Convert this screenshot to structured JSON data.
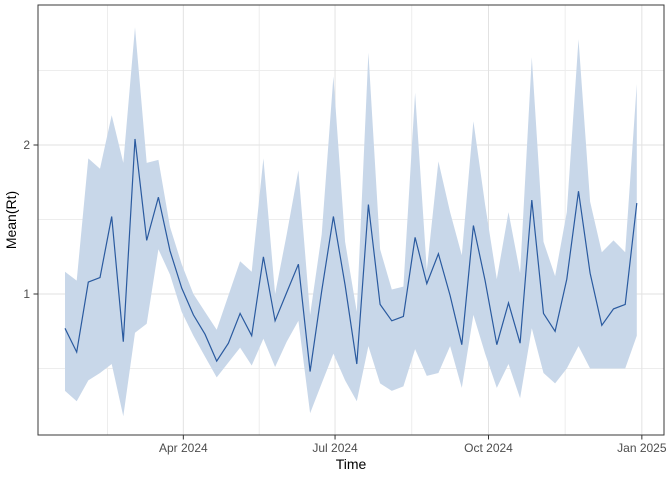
{
  "window": {
    "background": "#ffffff"
  },
  "chart_data": {
    "type": "line",
    "title": "",
    "xlabel": "Time",
    "ylabel": "Mean(Rt)",
    "x": [
      "2024-01-21",
      "2024-01-28",
      "2024-02-04",
      "2024-02-11",
      "2024-02-18",
      "2024-02-25",
      "2024-03-03",
      "2024-03-10",
      "2024-03-17",
      "2024-03-24",
      "2024-03-31",
      "2024-04-07",
      "2024-04-14",
      "2024-04-21",
      "2024-04-28",
      "2024-05-05",
      "2024-05-12",
      "2024-05-19",
      "2024-05-26",
      "2024-06-02",
      "2024-06-09",
      "2024-06-16",
      "2024-06-23",
      "2024-06-30",
      "2024-07-07",
      "2024-07-14",
      "2024-07-21",
      "2024-07-28",
      "2024-08-04",
      "2024-08-11",
      "2024-08-18",
      "2024-08-25",
      "2024-09-01",
      "2024-09-08",
      "2024-09-15",
      "2024-09-22",
      "2024-09-29",
      "2024-10-06",
      "2024-10-13",
      "2024-10-20",
      "2024-10-27",
      "2024-11-03",
      "2024-11-10",
      "2024-11-17",
      "2024-11-24",
      "2024-12-01",
      "2024-12-08",
      "2024-12-15",
      "2024-12-22",
      "2024-12-29"
    ],
    "series": [
      {
        "name": "mean_rt",
        "kind": "line",
        "color": "#2a5a9f",
        "values": [
          0.77,
          0.61,
          1.08,
          1.11,
          1.52,
          0.68,
          2.04,
          1.36,
          1.65,
          1.29,
          1.04,
          0.86,
          0.73,
          0.55,
          0.67,
          0.87,
          0.72,
          1.25,
          0.82,
          1.01,
          1.2,
          0.48,
          1.02,
          1.52,
          1.06,
          0.53,
          1.6,
          0.93,
          0.82,
          0.85,
          1.38,
          1.07,
          1.27,
          0.99,
          0.66,
          1.46,
          1.09,
          0.66,
          0.94,
          0.67,
          1.63,
          0.87,
          0.75,
          1.1,
          1.69,
          1.14,
          0.79,
          0.9,
          0.93,
          1.61
        ]
      },
      {
        "name": "credible_interval",
        "kind": "ribbon",
        "color": "#c8d7e9",
        "lower": [
          0.35,
          0.28,
          0.42,
          0.47,
          0.53,
          0.18,
          0.74,
          0.8,
          1.3,
          1.13,
          0.88,
          0.72,
          0.58,
          0.44,
          0.54,
          0.64,
          0.52,
          0.7,
          0.51,
          0.68,
          0.82,
          0.2,
          0.4,
          0.6,
          0.42,
          0.28,
          0.65,
          0.4,
          0.35,
          0.38,
          0.63,
          0.45,
          0.47,
          0.65,
          0.37,
          0.86,
          0.6,
          0.37,
          0.53,
          0.3,
          0.77,
          0.47,
          0.4,
          0.5,
          0.65,
          0.5,
          0.5,
          0.5,
          0.5,
          0.72
        ],
        "upper": [
          1.15,
          1.09,
          1.91,
          1.84,
          2.2,
          1.88,
          2.79,
          1.88,
          1.9,
          1.45,
          1.2,
          1.0,
          0.88,
          0.76,
          0.99,
          1.22,
          1.15,
          1.91,
          1.0,
          1.4,
          1.83,
          0.86,
          1.4,
          2.46,
          1.35,
          0.88,
          2.62,
          1.3,
          1.03,
          1.05,
          2.35,
          1.16,
          1.89,
          1.55,
          1.26,
          2.16,
          1.6,
          1.1,
          1.55,
          1.14,
          2.59,
          1.35,
          1.12,
          1.55,
          2.71,
          1.62,
          1.28,
          1.36,
          1.28,
          2.41
        ]
      }
    ],
    "x_tick_labels": [
      "Apr 2024",
      "Jul 2024",
      "Oct 2024",
      "Jan 2025"
    ],
    "x_tick_positions_weeks": [
      10.14,
      23.14,
      36.29,
      49.43
    ],
    "x_minor_positions_weeks": [
      3.64,
      16.64,
      29.71,
      42.86
    ],
    "y_tick_labels": [
      "1",
      "2"
    ],
    "y_tick_values": [
      1,
      2
    ],
    "y_minor_values": [
      0.5,
      1.5,
      2.5
    ],
    "ylim": [
      0.05,
      2.94
    ],
    "grid": true,
    "legend": false,
    "styles": {
      "line_color": "#2a5a9f",
      "ribbon_color": "#c8d7e9",
      "grid_major": "#e2e2e2",
      "grid_minor": "#ededed",
      "panel_border": "#3a3a3a",
      "tick_color": "#333333",
      "tick_label_color": "#4d4d4d",
      "axis_title_color": "#000000",
      "panel_background": "#ffffff"
    }
  }
}
